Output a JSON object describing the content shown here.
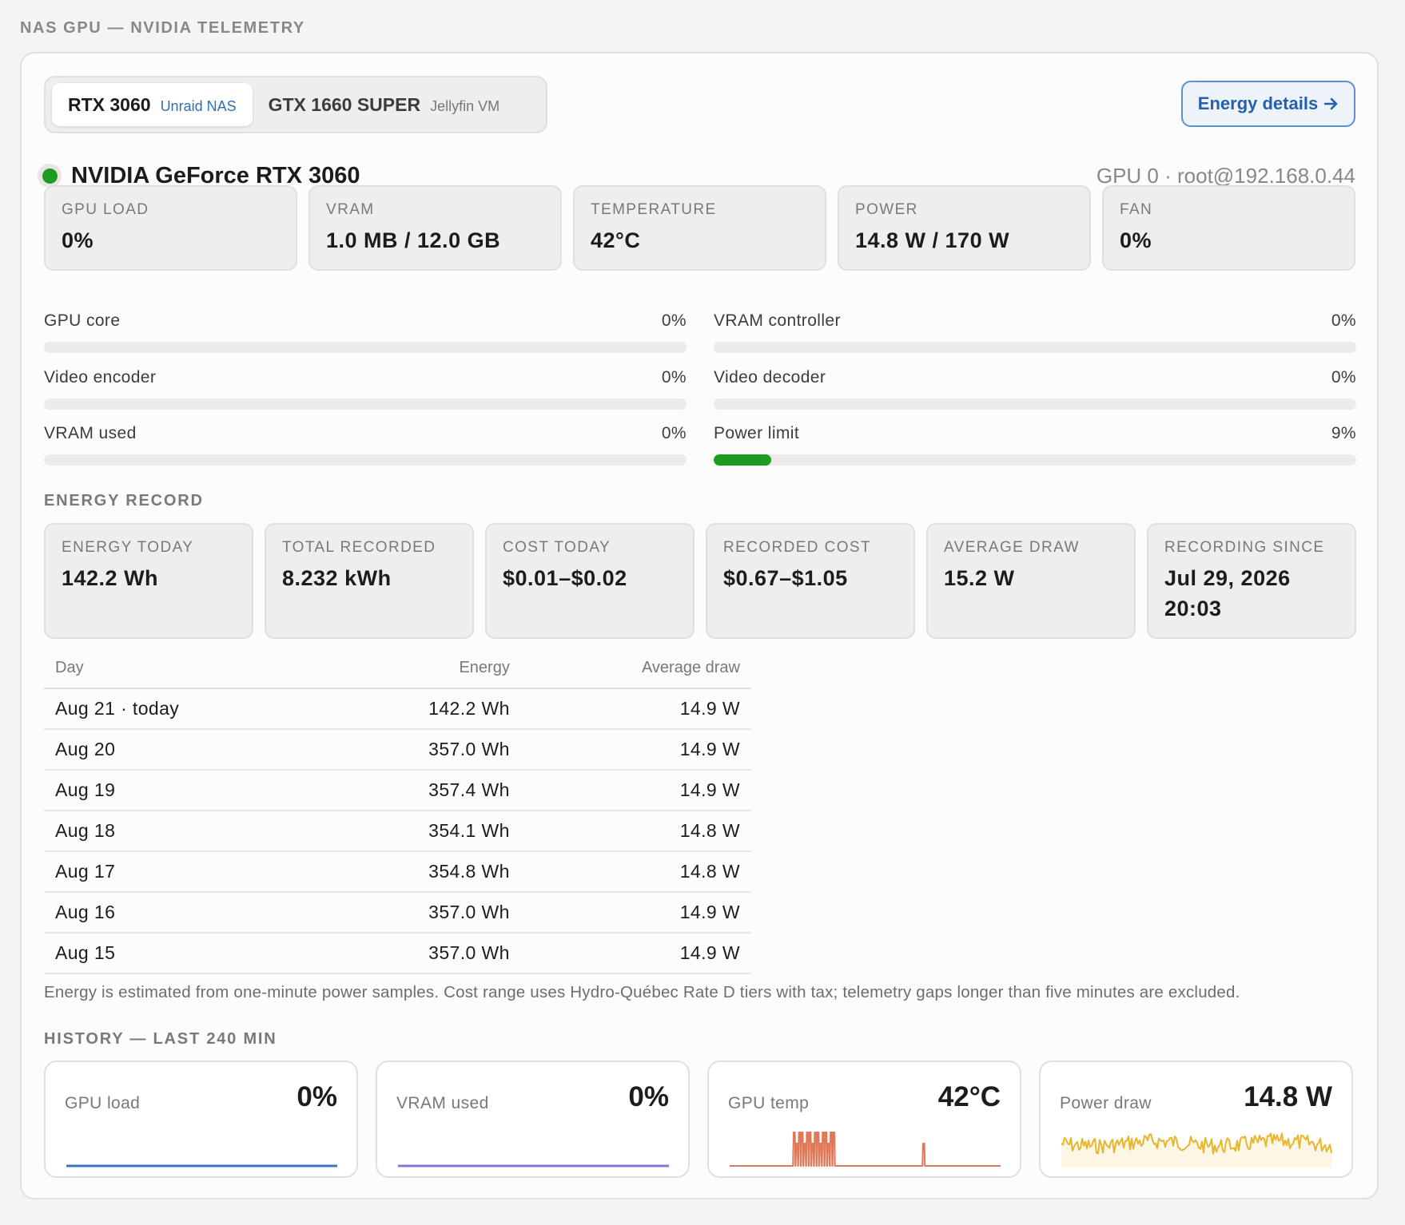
{
  "page_title": "NAS GPU — NVIDIA TELEMETRY",
  "tabs": [
    {
      "name": "RTX 3060",
      "host": "Unraid NAS",
      "active": true
    },
    {
      "name": "GTX 1660 SUPER",
      "host": "Jellyfin VM",
      "active": false
    }
  ],
  "energy_button": {
    "label": "Energy details",
    "icon": "arrow-right-icon"
  },
  "gpu": {
    "status_color": "#1c9c22",
    "name": "NVIDIA GeForce RTX 3060",
    "host": "GPU 0 · root@192.168.0.44"
  },
  "stats": [
    {
      "label": "GPU LOAD",
      "value": "0%"
    },
    {
      "label": "VRAM",
      "value": "1.0 MB / 12.0 GB"
    },
    {
      "label": "TEMPERATURE",
      "value": "42°C"
    },
    {
      "label": "POWER",
      "value": "14.8 W / 170 W"
    },
    {
      "label": "FAN",
      "value": "0%"
    }
  ],
  "bars": [
    {
      "label": "GPU core",
      "value": "0%",
      "fraction": 0.0
    },
    {
      "label": "VRAM controller",
      "value": "0%",
      "fraction": 0.0
    },
    {
      "label": "Video encoder",
      "value": "0%",
      "fraction": 0.0
    },
    {
      "label": "Video decoder",
      "value": "0%",
      "fraction": 0.0
    },
    {
      "label": "VRAM used",
      "value": "0%",
      "fraction": 0.0
    },
    {
      "label": "Power limit",
      "value": "9%",
      "fraction": 0.09
    }
  ],
  "energy_record": {
    "title": "ENERGY RECORD",
    "cards": [
      {
        "label": "ENERGY TODAY",
        "value": "142.2 Wh"
      },
      {
        "label": "TOTAL RECORDED",
        "value": "8.232 kWh"
      },
      {
        "label": "COST TODAY",
        "value": "$0.01–$0.02"
      },
      {
        "label": "RECORDED COST",
        "value": "$0.67–$1.05"
      },
      {
        "label": "AVERAGE DRAW",
        "value": "15.2 W"
      },
      {
        "label": "RECORDING SINCE",
        "value": "Jul 29, 2026 20:03"
      }
    ],
    "table": {
      "headers": [
        "Day",
        "Energy",
        "Average draw"
      ],
      "rows": [
        [
          "Aug 21 · today",
          "142.2 Wh",
          "14.9 W"
        ],
        [
          "Aug 20",
          "357.0 Wh",
          "14.9 W"
        ],
        [
          "Aug 19",
          "357.4 Wh",
          "14.9 W"
        ],
        [
          "Aug 18",
          "354.1 Wh",
          "14.8 W"
        ],
        [
          "Aug 17",
          "354.8 Wh",
          "14.8 W"
        ],
        [
          "Aug 16",
          "357.0 Wh",
          "14.9 W"
        ],
        [
          "Aug 15",
          "357.0 Wh",
          "14.9 W"
        ]
      ]
    },
    "note": "Energy is estimated from one-minute power samples. Cost range uses Hydro-Québec Rate D tiers with tax; telemetry gaps longer than five minutes are excluded."
  },
  "history": {
    "title": "HISTORY — LAST 240 MIN",
    "cards": [
      {
        "label": "GPU load",
        "value": "0%",
        "color": "#3b76c4"
      },
      {
        "label": "VRAM used",
        "value": "0%",
        "color": "#8c74d6"
      },
      {
        "label": "GPU temp",
        "value": "42°C",
        "color": "#e0795a"
      },
      {
        "label": "Power draw",
        "value": "14.8 W",
        "color": "#e9b52a"
      }
    ]
  }
}
